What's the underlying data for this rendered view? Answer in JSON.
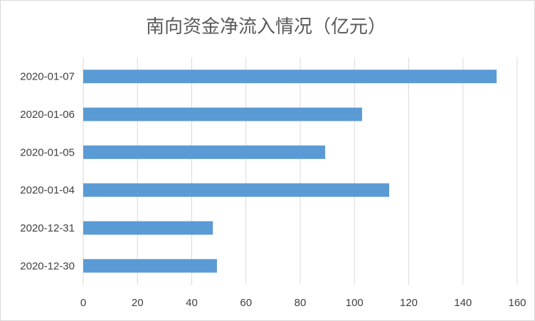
{
  "chart_data": {
    "type": "bar",
    "orientation": "horizontal",
    "title": "南向资金净流入情况（亿元）",
    "categories": [
      "2020-12-30",
      "2020-12-31",
      "2020-01-04",
      "2020-01-05",
      "2020-01-06",
      "2020-01-07"
    ],
    "values": [
      49.3,
      47.8,
      112.8,
      89.2,
      102.8,
      152.4
    ],
    "xlim": [
      0,
      160
    ],
    "xticks": [
      0,
      20,
      40,
      60,
      80,
      100,
      120,
      140,
      160
    ],
    "xlabel": "",
    "ylabel": "",
    "grid": "vertical",
    "legend": "none",
    "colors": {
      "bar": "#5b9bd5",
      "grid": "#d9d9d9",
      "text": "#404040",
      "title": "#595959"
    }
  }
}
